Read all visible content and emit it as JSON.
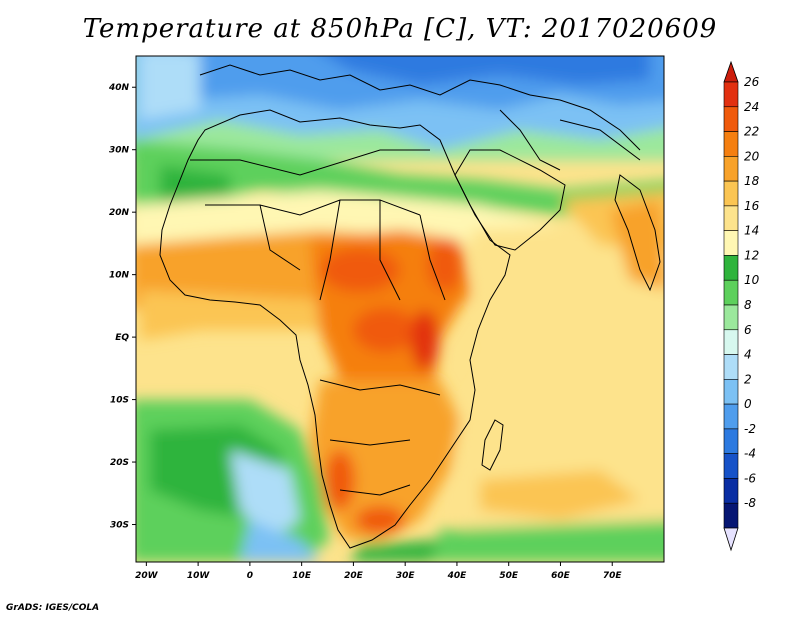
{
  "title": "Temperature at 850hPa [C], VT: 2017020609",
  "credit": "GrADS: IGES/COLA",
  "map": {
    "lon_range": [
      -22,
      80
    ],
    "lat_range": [
      -36,
      45
    ],
    "x_ticks": [
      {
        "lon": -20,
        "label": "20W"
      },
      {
        "lon": -10,
        "label": "10W"
      },
      {
        "lon": 0,
        "label": "0"
      },
      {
        "lon": 10,
        "label": "10E"
      },
      {
        "lon": 20,
        "label": "20E"
      },
      {
        "lon": 30,
        "label": "30E"
      },
      {
        "lon": 40,
        "label": "40E"
      },
      {
        "lon": 50,
        "label": "50E"
      },
      {
        "lon": 60,
        "label": "60E"
      },
      {
        "lon": 70,
        "label": "70E"
      }
    ],
    "y_ticks": [
      {
        "lat": 40,
        "label": "40N"
      },
      {
        "lat": 30,
        "label": "30N"
      },
      {
        "lat": 20,
        "label": "20N"
      },
      {
        "lat": 10,
        "label": "10N"
      },
      {
        "lat": 0,
        "label": "EQ"
      },
      {
        "lat": -10,
        "label": "10S"
      },
      {
        "lat": -20,
        "label": "20S"
      },
      {
        "lat": -30,
        "label": "30S"
      }
    ]
  },
  "colorbar": {
    "levels": [
      "26",
      "24",
      "22",
      "20",
      "18",
      "16",
      "14",
      "12",
      "10",
      "8",
      "6",
      "4",
      "2",
      "0",
      "-2",
      "-4",
      "-6",
      "-8"
    ],
    "colors": [
      "#e23010",
      "#f05a0c",
      "#f57f10",
      "#f8a22a",
      "#fbc553",
      "#fde38c",
      "#fff7b3",
      "#2fb43c",
      "#5dd05c",
      "#9be89c",
      "#d7f8ef",
      "#aeddf8",
      "#7cc1f4",
      "#4f9ded",
      "#2d7ae0",
      "#1652c8",
      "#0a2ea3",
      "#061673"
    ],
    "top_color": "#cc1d0c",
    "bottom_color": "#e6e2ff"
  }
}
